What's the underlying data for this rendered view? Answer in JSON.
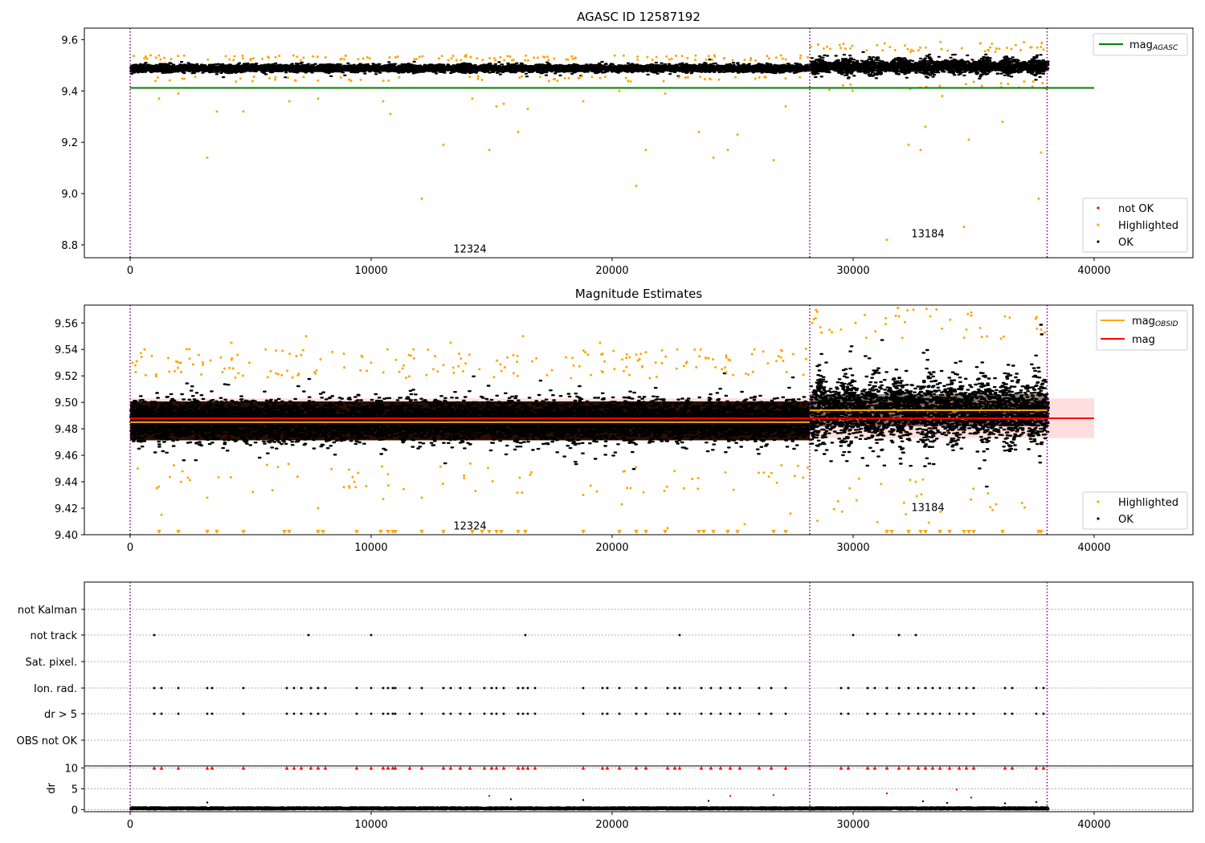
{
  "chart_data": [
    {
      "type": "scatter",
      "title": "AGASC ID 12587192",
      "xlim": [
        -1900,
        44100
      ],
      "ylim": [
        8.75,
        9.645
      ],
      "x_ticks": [
        0,
        10000,
        20000,
        30000,
        40000
      ],
      "y_ticks": [
        8.8,
        9.0,
        9.2,
        9.4,
        9.6
      ],
      "obsid_boundaries": [
        0,
        28200,
        38050
      ],
      "obsid_labels": [
        {
          "x": 14100,
          "y": 8.77,
          "text": "12324"
        },
        {
          "x": 33100,
          "y": 8.83,
          "text": "13184"
        }
      ],
      "mag_agasc": {
        "value": 9.412,
        "x": [
          0,
          40000
        ]
      },
      "series": [
        {
          "name": "OK",
          "color": "#000000",
          "segments": [
            {
              "x": [
                0,
                28200
              ],
              "center": 9.488,
              "spread": 0.014
            },
            {
              "x": [
                28200,
                38050
              ],
              "center": 9.495,
              "spread": 0.026
            }
          ]
        },
        {
          "name": "Highlighted",
          "color": "#ffa500",
          "points": [
            [
              3200,
              9.14
            ],
            [
              3600,
              9.32
            ],
            [
              4700,
              9.32
            ],
            [
              12100,
              8.98
            ],
            [
              13000,
              9.19
            ],
            [
              14900,
              9.17
            ],
            [
              16100,
              9.24
            ],
            [
              16500,
              9.33
            ],
            [
              21000,
              9.03
            ],
            [
              21400,
              9.17
            ],
            [
              23600,
              9.24
            ],
            [
              24200,
              9.14
            ],
            [
              24800,
              9.17
            ],
            [
              25200,
              9.23
            ],
            [
              26700,
              9.13
            ],
            [
              31400,
              8.82
            ],
            [
              32300,
              9.19
            ],
            [
              32800,
              9.17
            ],
            [
              33000,
              9.26
            ],
            [
              34600,
              8.87
            ],
            [
              34800,
              9.21
            ],
            [
              36200,
              9.28
            ],
            [
              37800,
              9.16
            ],
            [
              37700,
              8.98
            ],
            [
              1200,
              9.37
            ],
            [
              2000,
              9.39
            ],
            [
              6600,
              9.36
            ],
            [
              7800,
              9.37
            ],
            [
              10500,
              9.36
            ],
            [
              10800,
              9.31
            ],
            [
              14200,
              9.37
            ],
            [
              15200,
              9.34
            ],
            [
              15500,
              9.35
            ],
            [
              18800,
              9.36
            ],
            [
              20300,
              9.4
            ],
            [
              22200,
              9.39
            ],
            [
              27200,
              9.34
            ],
            [
              33700,
              9.38
            ]
          ]
        },
        {
          "name": "not OK",
          "color": "#ff0000",
          "points": []
        }
      ],
      "legend": [
        {
          "label": "mag",
          "sub": "AGASC",
          "color": "#008000",
          "kind": "line",
          "position": "upper-right"
        },
        {
          "label": "not OK",
          "color": "#ff0000",
          "kind": "dot",
          "position": "lower-right"
        },
        {
          "label": "Highlighted",
          "color": "#ffa500",
          "kind": "dot",
          "position": "lower-right"
        },
        {
          "label": "OK",
          "color": "#000000",
          "kind": "dot",
          "position": "lower-right"
        }
      ]
    },
    {
      "type": "scatter",
      "title": "Magnitude Estimates",
      "xlim": [
        -1900,
        44100
      ],
      "ylim": [
        9.4,
        9.5735
      ],
      "x_ticks": [
        0,
        10000,
        20000,
        30000,
        40000
      ],
      "y_ticks": [
        9.4,
        9.42,
        9.44,
        9.46,
        9.48,
        9.5,
        9.52,
        9.54,
        9.56
      ],
      "obsid_boundaries": [
        0,
        28200,
        38050
      ],
      "obsid_labels": [
        {
          "x": 14100,
          "y": 9.404,
          "text": "12324"
        },
        {
          "x": 33100,
          "y": 9.418,
          "text": "13184"
        }
      ],
      "mag": {
        "value": 9.488,
        "band": [
          9.473,
          9.503
        ],
        "x": [
          0,
          40000
        ]
      },
      "mag_obsid": [
        {
          "x": [
            0,
            28200
          ],
          "value": 9.485
        },
        {
          "x": [
            28200,
            38050
          ],
          "value": 9.494
        }
      ],
      "series": [
        {
          "name": "OK",
          "color": "#000000",
          "segments": [
            {
              "x": [
                0,
                28200
              ],
              "center": 9.486,
              "spread": 0.014
            },
            {
              "x": [
                28200,
                38050
              ],
              "center": 9.494,
              "spread": 0.022
            }
          ]
        },
        {
          "name": "Highlighted",
          "color": "#ffa500",
          "points": [
            [
              100,
              9.53
            ],
            [
              600,
              9.54
            ],
            [
              900,
              9.535
            ],
            [
              2100,
              9.53
            ],
            [
              4200,
              9.545
            ],
            [
              6900,
              9.535
            ],
            [
              7300,
              9.55
            ],
            [
              10000,
              9.53
            ],
            [
              13300,
              9.545
            ],
            [
              16300,
              9.55
            ],
            [
              19500,
              9.545
            ],
            [
              22700,
              9.54
            ],
            [
              25900,
              9.54
            ],
            [
              26900,
              9.535
            ],
            [
              28300,
              9.56
            ],
            [
              29500,
              9.555
            ],
            [
              30100,
              9.56
            ],
            [
              31900,
              9.565
            ],
            [
              32500,
              9.57
            ],
            [
              33200,
              9.565
            ],
            [
              34700,
              9.555
            ],
            [
              36300,
              9.565
            ],
            [
              37800,
              9.555
            ],
            [
              1300,
              9.415
            ],
            [
              3200,
              9.428
            ],
            [
              7800,
              9.42
            ],
            [
              10500,
              9.427
            ],
            [
              12100,
              9.428
            ],
            [
              18800,
              9.43
            ],
            [
              20400,
              9.423
            ],
            [
              21300,
              9.432
            ],
            [
              2400,
              9.443
            ],
            [
              9300,
              9.44
            ],
            [
              24700,
              9.447
            ],
            [
              32600,
              9.44
            ],
            [
              22300,
              9.405
            ],
            [
              25500,
              9.408
            ],
            [
              27400,
              9.416
            ]
          ]
        },
        {
          "name": "Highlighted (below range)",
          "color": "#ffa500",
          "marker": "triangle",
          "x": [
            1200,
            2000,
            3200,
            3600,
            4700,
            6400,
            6600,
            7800,
            8000,
            9400,
            10400,
            10700,
            10900,
            11000,
            12100,
            13000,
            14200,
            14600,
            14900,
            15200,
            15400,
            16100,
            16400,
            18800,
            20300,
            21000,
            21400,
            22200,
            23600,
            23800,
            24200,
            24800,
            25200,
            26700,
            27200,
            31400,
            31600,
            32300,
            32800,
            33000,
            33600,
            34000,
            34600,
            34800,
            35000,
            36200,
            37700,
            37800
          ]
        }
      ],
      "legend": [
        {
          "label": "mag",
          "sub": "OBSID",
          "color": "#ffa500",
          "kind": "line",
          "position": "upper-right"
        },
        {
          "label": "mag",
          "color": "#ff0000",
          "kind": "line",
          "position": "upper-right"
        },
        {
          "label": "Highlighted",
          "color": "#ffa500",
          "kind": "dot",
          "position": "lower-right"
        },
        {
          "label": "OK",
          "color": "#000000",
          "kind": "dot",
          "position": "lower-right"
        }
      ]
    },
    {
      "type": "scatter",
      "title": "",
      "xlim": [
        -1900,
        44100
      ],
      "categories": [
        "not Kalman",
        "not track",
        "Sat. pixel.",
        "Ion. rad.",
        "dr > 5",
        "OBS not OK"
      ],
      "obsid_boundaries": [
        0,
        28200,
        38050
      ],
      "flag_events": {
        "not track": [
          1000,
          7400,
          10000,
          16400,
          22800,
          30000,
          31900,
          32600
        ],
        "Ion. rad.": [
          1000,
          1300,
          2000,
          3200,
          3400,
          4700,
          6500,
          6800,
          7100,
          7500,
          7800,
          8100,
          9400,
          10000,
          10500,
          10700,
          10900,
          11000,
          11600,
          12100,
          13000,
          13300,
          13700,
          14100,
          14700,
          15000,
          15200,
          15500,
          16100,
          16300,
          16500,
          16800,
          18800,
          19600,
          19800,
          20300,
          21000,
          21400,
          22300,
          22600,
          22800,
          23700,
          24100,
          24500,
          24900,
          25300,
          26100,
          26600,
          27200,
          29500,
          29800,
          30600,
          30900,
          31400,
          31900,
          32300,
          32700,
          33000,
          33300,
          33600,
          34000,
          34400,
          34700,
          35000,
          36300,
          36600,
          37600,
          37900
        ],
        "dr > 5": [
          1000,
          1300,
          2000,
          3200,
          3400,
          4700,
          6500,
          6800,
          7100,
          7500,
          7800,
          8100,
          9400,
          10000,
          10500,
          10700,
          10900,
          11000,
          11600,
          12100,
          13000,
          13300,
          13700,
          14100,
          14700,
          15000,
          15200,
          15500,
          16100,
          16300,
          16500,
          16800,
          18800,
          19600,
          19800,
          20300,
          21000,
          21400,
          22300,
          22600,
          22800,
          23700,
          24100,
          24500,
          24900,
          25300,
          26100,
          26600,
          27200,
          29500,
          29800,
          30600,
          30900,
          31400,
          31900,
          32300,
          32700,
          33000,
          33300,
          33600,
          34000,
          34400,
          34700,
          35000,
          36300,
          36600,
          37600,
          37900
        ]
      }
    },
    {
      "type": "scatter",
      "title": "",
      "ylabel": "dr",
      "xlim": [
        -1900,
        44100
      ],
      "ylim": [
        -0.5,
        10.5
      ],
      "x_ticks": [
        0,
        10000,
        20000,
        30000,
        40000
      ],
      "y_ticks": [
        0,
        5,
        10
      ],
      "obsid_boundaries": [
        0,
        28200,
        38050
      ],
      "series": [
        {
          "name": "OK",
          "color": "#000000",
          "band": [
            0,
            0.6
          ],
          "x": [
            0,
            38050
          ]
        },
        {
          "name": "dr high (clipped)",
          "color": "#ff0000",
          "marker": "triangle",
          "value": 10,
          "x": [
            1000,
            1300,
            2000,
            3200,
            3400,
            4700,
            6500,
            6800,
            7100,
            7500,
            7800,
            8100,
            9400,
            10000,
            10500,
            10700,
            10900,
            11000,
            11600,
            12100,
            13000,
            13300,
            13700,
            14100,
            14700,
            15000,
            15200,
            15500,
            16100,
            16300,
            16500,
            16800,
            18800,
            19600,
            19800,
            20300,
            21000,
            21400,
            22300,
            22600,
            22800,
            23700,
            24100,
            24500,
            24900,
            25300,
            26100,
            26600,
            27200,
            29500,
            29800,
            30600,
            30900,
            31400,
            31900,
            32300,
            32700,
            33000,
            33300,
            33600,
            34000,
            34400,
            34700,
            35000,
            36300,
            36600,
            37600,
            37900
          ]
        },
        {
          "name": "dr outliers",
          "color": "#ff0000",
          "points": [
            [
              14900,
              3.3
            ],
            [
              24900,
              3.3
            ],
            [
              26700,
              3.5
            ],
            [
              31400,
              3.9
            ],
            [
              34300,
              4.8
            ],
            [
              34900,
              2.9
            ]
          ]
        },
        {
          "name": "dr OK large",
          "color": "#000000",
          "points": [
            [
              3200,
              1.7
            ],
            [
              15800,
              2.5
            ],
            [
              18800,
              2.3
            ],
            [
              24000,
              2.1
            ],
            [
              32900,
              2.0
            ],
            [
              33900,
              1.6
            ],
            [
              36300,
              1.5
            ],
            [
              37600,
              1.8
            ]
          ]
        }
      ]
    }
  ]
}
